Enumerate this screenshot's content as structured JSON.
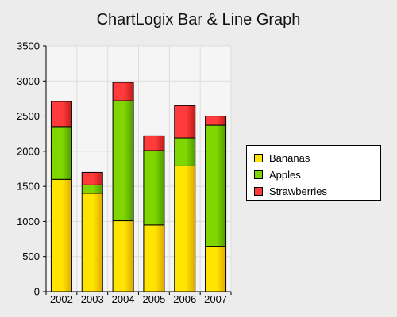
{
  "chart_data": {
    "type": "bar",
    "stacked": true,
    "title": "ChartLogix Bar & Line Graph",
    "categories": [
      "2002",
      "2003",
      "2004",
      "2005",
      "2006",
      "2007"
    ],
    "series": [
      {
        "name": "Bananas",
        "values": [
          1600,
          1400,
          1010,
          950,
          1790,
          640
        ],
        "color": "#ffe400"
      },
      {
        "name": "Apples",
        "values": [
          750,
          120,
          1710,
          1060,
          400,
          1730
        ],
        "color": "#7fd600"
      },
      {
        "name": "Strawberries",
        "values": [
          360,
          180,
          260,
          210,
          460,
          130
        ],
        "color": "#ff3b3b"
      }
    ],
    "ylim": [
      0,
      3500
    ],
    "yticks": [
      "0",
      "500",
      "1000",
      "1500",
      "2000",
      "2500",
      "3000",
      "3500"
    ],
    "grid": true,
    "legend_position": "right"
  }
}
